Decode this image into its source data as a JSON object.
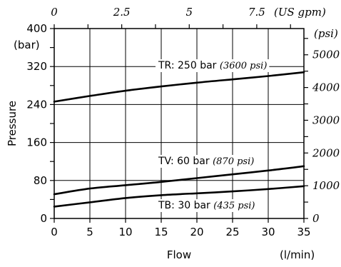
{
  "chart_data": {
    "type": "line",
    "xlabel": "Flow",
    "xunit": "(l/min)",
    "ylabel": "Pressure",
    "yunit_left": "(bar)",
    "yunit_right": "(psi)",
    "xunit_top": "(US gpm)",
    "xlim": [
      0,
      35
    ],
    "ylim": [
      0,
      400
    ],
    "x_ticks": [
      "0",
      "5",
      "10",
      "15",
      "20",
      "25",
      "30",
      "35"
    ],
    "x_tick_values": [
      0,
      5,
      10,
      15,
      20,
      25,
      30,
      35
    ],
    "y_ticks_left": [
      "0",
      "80",
      "160",
      "240",
      "320",
      "400"
    ],
    "y_tick_values_left": [
      0,
      80,
      160,
      240,
      320,
      400
    ],
    "x_ticks_top": [
      "0",
      "2.5",
      "5",
      "7.5"
    ],
    "x_tick_values_top_gpm": [
      0,
      2.5,
      5,
      7.5
    ],
    "y_ticks_right": [
      "0",
      "1000",
      "2000",
      "3000",
      "4000",
      "5000"
    ],
    "y_tick_values_right_psi": [
      0,
      1000,
      2000,
      3000,
      4000,
      5000
    ],
    "grid": true,
    "series": [
      {
        "name": "TR: 250 bar",
        "name_alt": "(3600 psi)",
        "x": [
          0,
          5,
          10,
          15,
          20,
          25,
          30,
          35
        ],
        "y": [
          246,
          258,
          269,
          278,
          286,
          293,
          300,
          308
        ]
      },
      {
        "name": "TV: 60 bar",
        "name_alt": "(870 psi)",
        "x": [
          0,
          5,
          10,
          15,
          20,
          25,
          30,
          35
        ],
        "y": [
          51,
          63,
          70,
          77,
          85,
          93,
          101,
          110
        ]
      },
      {
        "name": "TB: 30 bar",
        "name_alt": "(435 psi)",
        "x": [
          0,
          5,
          10,
          15,
          20,
          25,
          30,
          35
        ],
        "y": [
          25,
          34,
          43,
          49,
          53,
          57,
          62,
          68
        ]
      }
    ]
  }
}
